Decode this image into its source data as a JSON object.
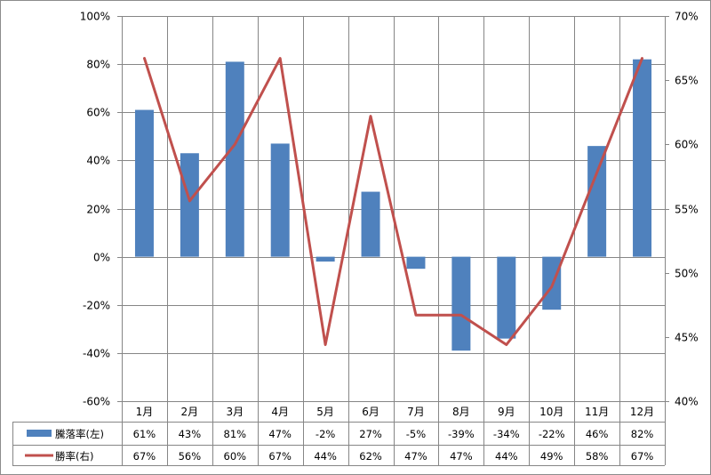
{
  "chart_data": {
    "type": "bar+line",
    "categories": [
      "1月",
      "2月",
      "3月",
      "4月",
      "5月",
      "6月",
      "7月",
      "8月",
      "9月",
      "10月",
      "11月",
      "12月"
    ],
    "series": [
      {
        "name": "騰落率(左)",
        "type": "bar",
        "axis": "left",
        "color": "#4F81BD",
        "values": [
          61,
          43,
          81,
          47,
          -2,
          27,
          -5,
          -39,
          -34,
          -22,
          46,
          82
        ],
        "labels": [
          "61%",
          "43%",
          "81%",
          "47%",
          "-2%",
          "27%",
          "-5%",
          "-39%",
          "-34%",
          "-22%",
          "46%",
          "82%"
        ]
      },
      {
        "name": "勝率(右)",
        "type": "line",
        "axis": "right",
        "color": "#C0504D",
        "values": [
          66.7,
          55.6,
          60,
          66.7,
          44.4,
          62.2,
          46.7,
          46.7,
          44.4,
          48.9,
          57.8,
          66.7
        ],
        "labels": [
          "67%",
          "56%",
          "60%",
          "67%",
          "44%",
          "62%",
          "47%",
          "47%",
          "44%",
          "49%",
          "58%",
          "67%"
        ]
      }
    ],
    "y_left": {
      "min": -60,
      "max": 100,
      "step": 20,
      "tick_labels": [
        "100%",
        "80%",
        "60%",
        "40%",
        "20%",
        "0%",
        "-20%",
        "-40%",
        "-60%"
      ]
    },
    "y_right": {
      "min": 40,
      "max": 70,
      "step": 5,
      "tick_labels": [
        "70%",
        "65%",
        "60%",
        "55%",
        "50%",
        "45%",
        "40%"
      ]
    },
    "grid": "horizontal",
    "legend": "data-table"
  }
}
